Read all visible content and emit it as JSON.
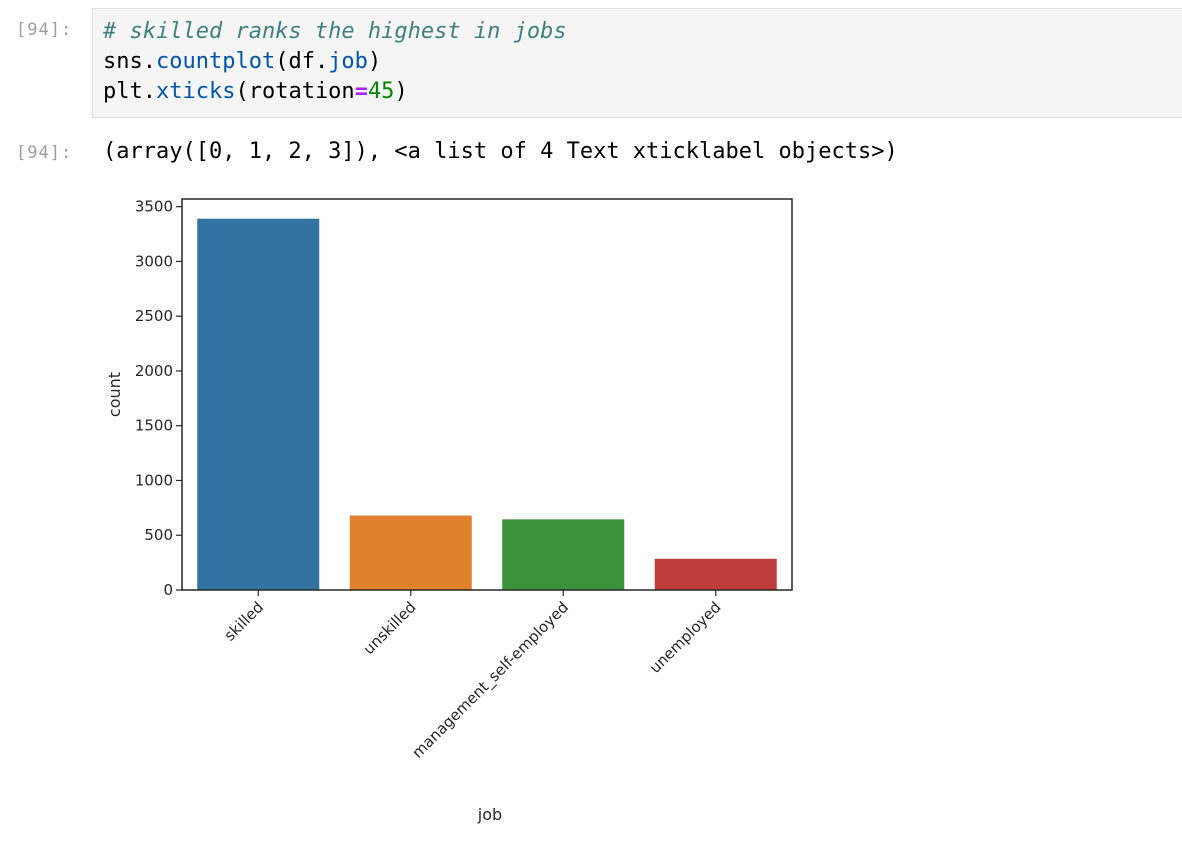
{
  "input_cell": {
    "prompt": "[94]:",
    "comment": "# skilled ranks the highest in jobs",
    "line2": {
      "obj": "sns.",
      "fn": "countplot",
      "open": "(df.",
      "attr": "job",
      "close": ")"
    },
    "line3": {
      "obj": "plt.",
      "fn": "xticks",
      "open": "(rotation",
      "eq": "=",
      "num": "45",
      "close": ")"
    }
  },
  "output_cell": {
    "prompt": "[94]:",
    "text": "(array([0, 1, 2, 3]), <a list of 4 Text xticklabel objects>)"
  },
  "colors": {
    "skilled": "#3274a1",
    "unskilled": "#e1812c",
    "management_self-employed": "#3a923a",
    "unemployed": "#c03d3e"
  },
  "chart_data": {
    "type": "bar",
    "categories": [
      "skilled",
      "unskilled",
      "management_self-employed",
      "unemployed"
    ],
    "values": [
      3390,
      680,
      645,
      285
    ],
    "xlabel": "job",
    "ylabel": "count",
    "ylim": [
      0,
      3570
    ],
    "yticks": [
      0,
      500,
      1000,
      1500,
      2000,
      2500,
      3000,
      3500
    ],
    "xtick_rotation": 45,
    "grid": false
  }
}
